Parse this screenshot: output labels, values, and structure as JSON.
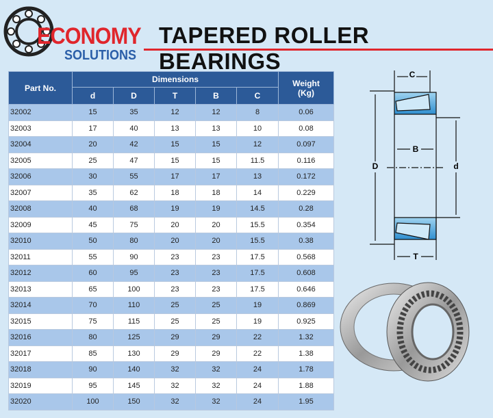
{
  "logo": {
    "name": "ECONOMY",
    "tagline": "SOLUTIONS"
  },
  "header": {
    "title": "TAPERED ROLLER BEARINGS"
  },
  "table": {
    "part_header": "Part No.",
    "group_header": "Dimensions",
    "weight_header": "Weight (Kg)",
    "columns": [
      "d",
      "D",
      "T",
      "B",
      "C"
    ],
    "rows": [
      [
        "32002",
        "15",
        "35",
        "12",
        "12",
        "8",
        "0.06"
      ],
      [
        "32003",
        "17",
        "40",
        "13",
        "13",
        "10",
        "0.08"
      ],
      [
        "32004",
        "20",
        "42",
        "15",
        "15",
        "12",
        "0.097"
      ],
      [
        "32005",
        "25",
        "47",
        "15",
        "15",
        "11.5",
        "0.116"
      ],
      [
        "32006",
        "30",
        "55",
        "17",
        "17",
        "13",
        "0.172"
      ],
      [
        "32007",
        "35",
        "62",
        "18",
        "18",
        "14",
        "0.229"
      ],
      [
        "32008",
        "40",
        "68",
        "19",
        "19",
        "14.5",
        "0.28"
      ],
      [
        "32009",
        "45",
        "75",
        "20",
        "20",
        "15.5",
        "0.354"
      ],
      [
        "32010",
        "50",
        "80",
        "20",
        "20",
        "15.5",
        "0.38"
      ],
      [
        "32011",
        "55",
        "90",
        "23",
        "23",
        "17.5",
        "0.568"
      ],
      [
        "32012",
        "60",
        "95",
        "23",
        "23",
        "17.5",
        "0.608"
      ],
      [
        "32013",
        "65",
        "100",
        "23",
        "23",
        "17.5",
        "0.646"
      ],
      [
        "32014",
        "70",
        "110",
        "25",
        "25",
        "19",
        "0.869"
      ],
      [
        "32015",
        "75",
        "115",
        "25",
        "25",
        "19",
        "0.925"
      ],
      [
        "32016",
        "80",
        "125",
        "29",
        "29",
        "22",
        "1.32"
      ],
      [
        "32017",
        "85",
        "130",
        "29",
        "29",
        "22",
        "1.38"
      ],
      [
        "32018",
        "90",
        "140",
        "32",
        "32",
        "24",
        "1.78"
      ],
      [
        "32019",
        "95",
        "145",
        "32",
        "32",
        "24",
        "1.88"
      ],
      [
        "32020",
        "100",
        "150",
        "32",
        "32",
        "24",
        "1.95"
      ]
    ]
  },
  "diagram": {
    "labels": {
      "C": "C",
      "B": "B",
      "D": "D",
      "d": "d",
      "T": "T"
    }
  }
}
